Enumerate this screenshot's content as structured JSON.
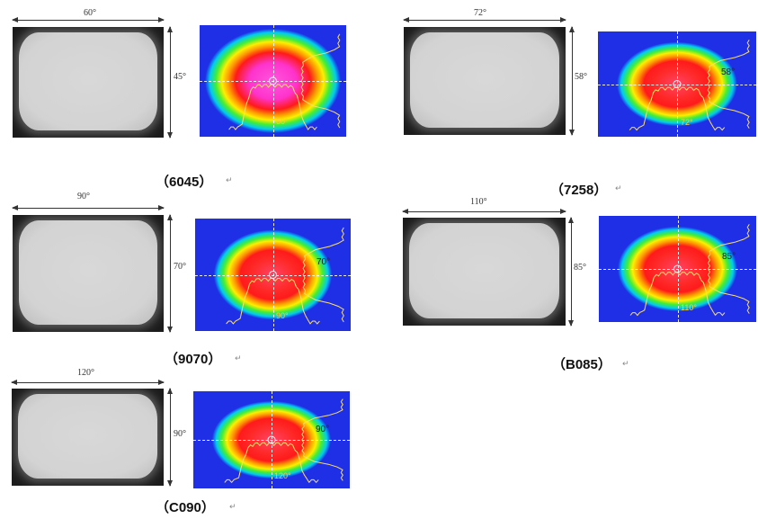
{
  "figures": [
    {
      "id": "6045",
      "width_label": "60°",
      "height_label": "45°",
      "heatmap_width_label": "60°",
      "heatmap_height_label": "",
      "caption": "（6045）",
      "paragraph_mark": "↵"
    },
    {
      "id": "7258",
      "width_label": "72°",
      "height_label": "58°",
      "heatmap_width_label": "72°",
      "heatmap_height_label": "58°",
      "caption": "（7258）",
      "paragraph_mark": "↵"
    },
    {
      "id": "9070",
      "width_label": "90°",
      "height_label": "70°",
      "heatmap_width_label": "90°",
      "heatmap_height_label": "70°",
      "caption": "（9070）",
      "paragraph_mark": "↵"
    },
    {
      "id": "B085",
      "width_label": "110°",
      "height_label": "85°",
      "heatmap_width_label": "110°",
      "heatmap_height_label": "85°",
      "caption": "（B085）",
      "paragraph_mark": "↵"
    },
    {
      "id": "C090",
      "width_label": "120°",
      "height_label": "90°",
      "heatmap_width_label": "120°",
      "heatmap_height_label": "90°",
      "caption": "（C090）",
      "paragraph_mark": "↵"
    }
  ]
}
